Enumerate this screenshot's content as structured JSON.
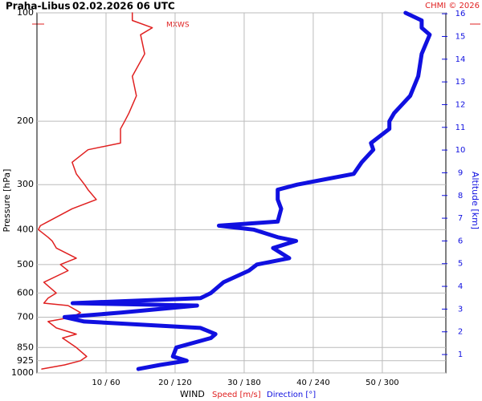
{
  "chart_data": {
    "type": "line",
    "title": "Praha-Libus",
    "subtitle": "02.02.2026 06 UTC",
    "credit": "CHMI © 2026",
    "annotation": "MXWS",
    "x_label": "WIND",
    "y_label": "Pressure [hPa]",
    "y2_label": "Altitude [km]",
    "y_scale": "log",
    "grid": true,
    "ylim": [
      1000,
      100
    ],
    "yticks": [
      100,
      200,
      300,
      400,
      500,
      600,
      700,
      850,
      925,
      1000
    ],
    "y2lim": [
      0.19,
      16.04
    ],
    "y2ticks": [
      1,
      2,
      3,
      4,
      5,
      6,
      7,
      8,
      9,
      10,
      11,
      12,
      13,
      14,
      15,
      16
    ],
    "xlim": [
      0,
      59.2
    ],
    "x2lim": [
      0,
      355
    ],
    "xticks": [
      {
        "value": 10,
        "label": "10 / 60"
      },
      {
        "value": 20,
        "label": "20 / 120"
      },
      {
        "value": 30,
        "label": "30 / 180"
      },
      {
        "value": 40,
        "label": "40 / 240"
      },
      {
        "value": 50,
        "label": "50 / 300"
      }
    ],
    "pressure": [
      975,
      950,
      925,
      900,
      850,
      800,
      780,
      750,
      720,
      700,
      680,
      650,
      640,
      620,
      600,
      560,
      520,
      500,
      480,
      450,
      430,
      420,
      400,
      390,
      380,
      350,
      330,
      310,
      300,
      280,
      260,
      240,
      230,
      210,
      200,
      190,
      170,
      150,
      130,
      115,
      110,
      105,
      100
    ],
    "series": [
      {
        "name": "Speed [m/s]",
        "color": "#e02020",
        "axis": "x",
        "values": [
          0.7,
          4.0,
          6.3,
          7.2,
          5.7,
          3.7,
          5.7,
          2.8,
          1.6,
          5.1,
          6.3,
          4.5,
          1.0,
          1.6,
          2.8,
          1.0,
          4.5,
          3.4,
          5.7,
          2.8,
          2.2,
          1.6,
          0.2,
          0.5,
          1.6,
          5.1,
          8.6,
          7.4,
          6.9,
          5.7,
          5.1,
          7.4,
          12.1,
          12.1,
          12.7,
          13.3,
          14.4,
          13.8,
          15.6,
          15.0,
          16.7,
          13.8,
          13.8
        ]
      },
      {
        "name": "Direction [°]",
        "color": "#1010e0",
        "axis": "x2",
        "values": [
          88,
          107,
          130,
          118,
          121,
          151,
          155,
          142,
          41,
          24,
          73,
          139,
          31,
          142,
          151,
          162,
          184,
          191,
          219,
          205,
          225,
          209,
          188,
          158,
          209,
          212,
          209,
          209,
          226,
          275,
          282,
          292,
          290,
          306,
          306,
          310,
          324,
          331,
          334,
          341,
          334,
          334,
          320
        ]
      }
    ]
  }
}
